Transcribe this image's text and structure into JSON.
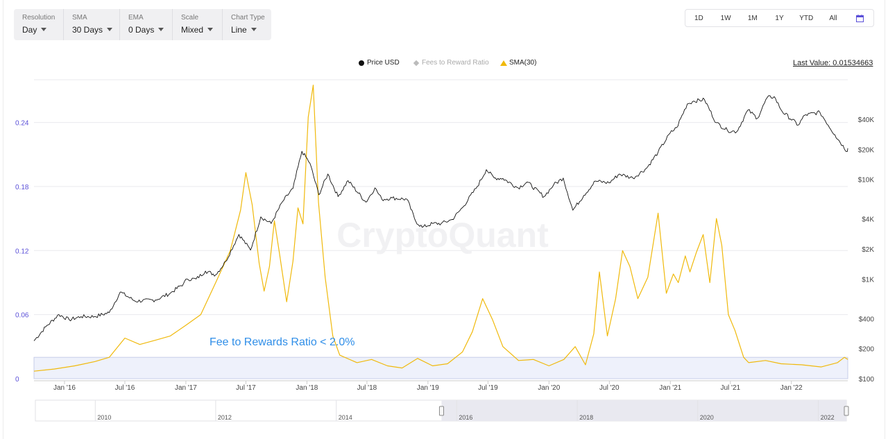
{
  "controls": [
    {
      "label": "Resolution",
      "value": "Day"
    },
    {
      "label": "SMA",
      "value": "30 Days"
    },
    {
      "label": "EMA",
      "value": "0 Days"
    },
    {
      "label": "Scale",
      "value": "Mixed"
    },
    {
      "label": "Chart Type",
      "value": "Line"
    }
  ],
  "ranges": [
    "1D",
    "1W",
    "1M",
    "1Y",
    "YTD",
    "All"
  ],
  "calendar_icon": "calendar-icon",
  "legend": [
    {
      "name": "Price USD",
      "marker": "circle",
      "color": "#111111"
    },
    {
      "name": "Fees to Reward Ratio",
      "marker": "diamond",
      "color": "#bbbbbb"
    },
    {
      "name": "SMA(30)",
      "marker": "triangle",
      "color": "#f0b90b"
    }
  ],
  "last_value": "Last Value: 0.01534663",
  "watermark": "CryptoQuant",
  "annotation": "Fee to Rewards Ratio < 2.0%",
  "chart_data": {
    "type": "line",
    "x_ticks": [
      "Jan '16",
      "Jul '16",
      "Jan '17",
      "Jul '17",
      "Jan '18",
      "Jul '18",
      "Jan '19",
      "Jul '19",
      "Jan '20",
      "Jul '20",
      "Jan '21",
      "Jul '21",
      "Jan '22"
    ],
    "left_axis": {
      "ticks": [
        "0",
        "0.06",
        "0.12",
        "0.18",
        "0.24"
      ],
      "values": [
        0,
        0.06,
        0.12,
        0.18,
        0.24
      ],
      "range": [
        0,
        0.28
      ]
    },
    "right_axis": {
      "scale": "log",
      "ticks": [
        "$100",
        "$200",
        "$400",
        "$1K",
        "$2K",
        "$4K",
        "$10K",
        "$20K",
        "$40K"
      ],
      "values": [
        100,
        200,
        400,
        1000,
        2000,
        4000,
        10000,
        20000,
        40000
      ]
    },
    "x_range": [
      "2015-10-01",
      "2022-06-20"
    ],
    "highlight_band": {
      "from": 0,
      "to": 0.02
    },
    "series": [
      {
        "name": "Price USD",
        "axis": "right",
        "color": "#111111",
        "points": [
          [
            "2015-10-01",
            240
          ],
          [
            "2015-11-05",
            330
          ],
          [
            "2015-12-15",
            440
          ],
          [
            "2016-01-15",
            390
          ],
          [
            "2016-02-20",
            420
          ],
          [
            "2016-04-01",
            420
          ],
          [
            "2016-05-15",
            460
          ],
          [
            "2016-06-17",
            740
          ],
          [
            "2016-08-01",
            600
          ],
          [
            "2016-10-01",
            615
          ],
          [
            "2016-11-15",
            720
          ],
          [
            "2016-12-25",
            900
          ],
          [
            "2017-01-05",
            1000
          ],
          [
            "2017-02-01",
            1000
          ],
          [
            "2017-03-01",
            1200
          ],
          [
            "2017-04-01",
            1100
          ],
          [
            "2017-05-01",
            1500
          ],
          [
            "2017-06-10",
            2800
          ],
          [
            "2017-07-15",
            1950
          ],
          [
            "2017-08-15",
            4200
          ],
          [
            "2017-09-15",
            3600
          ],
          [
            "2017-10-20",
            6000
          ],
          [
            "2017-11-20",
            8100
          ],
          [
            "2017-12-17",
            19100
          ],
          [
            "2018-01-10",
            14500
          ],
          [
            "2018-02-06",
            7000
          ],
          [
            "2018-03-05",
            11300
          ],
          [
            "2018-04-05",
            6700
          ],
          [
            "2018-05-05",
            9700
          ],
          [
            "2018-06-28",
            5900
          ],
          [
            "2018-07-25",
            8200
          ],
          [
            "2018-08-15",
            6300
          ],
          [
            "2018-09-15",
            6500
          ],
          [
            "2018-10-30",
            6300
          ],
          [
            "2018-11-25",
            3800
          ],
          [
            "2018-12-15",
            3300
          ],
          [
            "2019-01-15",
            3600
          ],
          [
            "2019-02-10",
            3600
          ],
          [
            "2019-03-15",
            3950
          ],
          [
            "2019-04-15",
            5200
          ],
          [
            "2019-05-30",
            8500
          ],
          [
            "2019-06-26",
            12500
          ],
          [
            "2019-07-20",
            10300
          ],
          [
            "2019-08-15",
            10200
          ],
          [
            "2019-09-30",
            8200
          ],
          [
            "2019-10-27",
            9400
          ],
          [
            "2019-12-17",
            6700
          ],
          [
            "2020-01-15",
            8800
          ],
          [
            "2020-02-13",
            10300
          ],
          [
            "2020-03-13",
            4900
          ],
          [
            "2020-04-15",
            6900
          ],
          [
            "2020-05-20",
            9600
          ],
          [
            "2020-06-30",
            9200
          ],
          [
            "2020-07-31",
            11300
          ],
          [
            "2020-09-10",
            10300
          ],
          [
            "2020-10-21",
            12900
          ],
          [
            "2020-11-25",
            18700
          ],
          [
            "2020-12-31",
            29000
          ],
          [
            "2021-01-20",
            33000
          ],
          [
            "2021-02-21",
            57000
          ],
          [
            "2021-03-13",
            61000
          ],
          [
            "2021-04-14",
            63000
          ],
          [
            "2021-05-19",
            37000
          ],
          [
            "2021-06-22",
            31000
          ],
          [
            "2021-07-20",
            30000
          ],
          [
            "2021-08-23",
            49500
          ],
          [
            "2021-09-21",
            41000
          ],
          [
            "2021-10-20",
            66000
          ],
          [
            "2021-11-10",
            67500
          ],
          [
            "2021-12-04",
            48000
          ],
          [
            "2022-01-22",
            35000
          ],
          [
            "2022-02-10",
            44000
          ],
          [
            "2022-03-28",
            47000
          ],
          [
            "2022-05-12",
            28000
          ],
          [
            "2022-06-18",
            19000
          ],
          [
            "2022-06-20",
            20500
          ]
        ]
      },
      {
        "name": "SMA(30)",
        "axis": "left",
        "color": "#f0b90b",
        "points": [
          [
            "2015-10-01",
            0.007
          ],
          [
            "2015-12-01",
            0.009
          ],
          [
            "2016-02-01",
            0.012
          ],
          [
            "2016-04-01",
            0.016
          ],
          [
            "2016-05-15",
            0.02
          ],
          [
            "2016-07-01",
            0.038
          ],
          [
            "2016-08-15",
            0.032
          ],
          [
            "2016-10-01",
            0.036
          ],
          [
            "2016-11-15",
            0.04
          ],
          [
            "2017-01-01",
            0.05
          ],
          [
            "2017-02-15",
            0.06
          ],
          [
            "2017-04-01",
            0.09
          ],
          [
            "2017-05-15",
            0.12
          ],
          [
            "2017-06-15",
            0.158
          ],
          [
            "2017-07-01",
            0.193
          ],
          [
            "2017-07-20",
            0.163
          ],
          [
            "2017-08-10",
            0.108
          ],
          [
            "2017-08-25",
            0.082
          ],
          [
            "2017-09-10",
            0.105
          ],
          [
            "2017-09-25",
            0.148
          ],
          [
            "2017-10-10",
            0.118
          ],
          [
            "2017-11-01",
            0.072
          ],
          [
            "2017-11-20",
            0.11
          ],
          [
            "2017-12-05",
            0.16
          ],
          [
            "2017-12-20",
            0.145
          ],
          [
            "2018-01-05",
            0.245
          ],
          [
            "2018-01-20",
            0.275
          ],
          [
            "2018-02-05",
            0.165
          ],
          [
            "2018-02-25",
            0.095
          ],
          [
            "2018-03-20",
            0.04
          ],
          [
            "2018-04-10",
            0.022
          ],
          [
            "2018-06-01",
            0.015
          ],
          [
            "2018-07-15",
            0.018
          ],
          [
            "2018-09-01",
            0.012
          ],
          [
            "2018-10-15",
            0.01
          ],
          [
            "2018-12-01",
            0.019
          ],
          [
            "2019-01-15",
            0.012
          ],
          [
            "2019-03-01",
            0.014
          ],
          [
            "2019-04-15",
            0.025
          ],
          [
            "2019-05-15",
            0.044
          ],
          [
            "2019-06-15",
            0.075
          ],
          [
            "2019-07-15",
            0.055
          ],
          [
            "2019-08-15",
            0.03
          ],
          [
            "2019-10-01",
            0.017
          ],
          [
            "2019-11-15",
            0.018
          ],
          [
            "2020-01-01",
            0.012
          ],
          [
            "2020-02-15",
            0.018
          ],
          [
            "2020-03-20",
            0.03
          ],
          [
            "2020-04-20",
            0.013
          ],
          [
            "2020-05-15",
            0.042
          ],
          [
            "2020-06-01",
            0.1
          ],
          [
            "2020-06-25",
            0.04
          ],
          [
            "2020-07-20",
            0.075
          ],
          [
            "2020-08-10",
            0.12
          ],
          [
            "2020-09-01",
            0.105
          ],
          [
            "2020-09-25",
            0.075
          ],
          [
            "2020-10-25",
            0.095
          ],
          [
            "2020-11-25",
            0.155
          ],
          [
            "2020-12-20",
            0.08
          ],
          [
            "2021-01-10",
            0.098
          ],
          [
            "2021-01-25",
            0.09
          ],
          [
            "2021-02-15",
            0.115
          ],
          [
            "2021-03-01",
            0.1
          ],
          [
            "2021-03-20",
            0.118
          ],
          [
            "2021-04-10",
            0.135
          ],
          [
            "2021-04-30",
            0.09
          ],
          [
            "2021-05-20",
            0.15
          ],
          [
            "2021-06-05",
            0.125
          ],
          [
            "2021-06-25",
            0.06
          ],
          [
            "2021-07-15",
            0.045
          ],
          [
            "2021-08-10",
            0.02
          ],
          [
            "2021-08-25",
            0.015
          ],
          [
            "2021-10-15",
            0.017
          ],
          [
            "2021-12-01",
            0.014
          ],
          [
            "2022-02-01",
            0.013
          ],
          [
            "2022-04-01",
            0.011
          ],
          [
            "2022-05-20",
            0.015
          ],
          [
            "2022-06-10",
            0.02
          ],
          [
            "2022-06-20",
            0.018
          ]
        ]
      }
    ],
    "navigator": {
      "labels": [
        "2010",
        "2012",
        "2014",
        "2016",
        "2018",
        "2020",
        "2022"
      ],
      "selected_from": "2015-10-01",
      "selected_to": "2022-06-20"
    }
  }
}
